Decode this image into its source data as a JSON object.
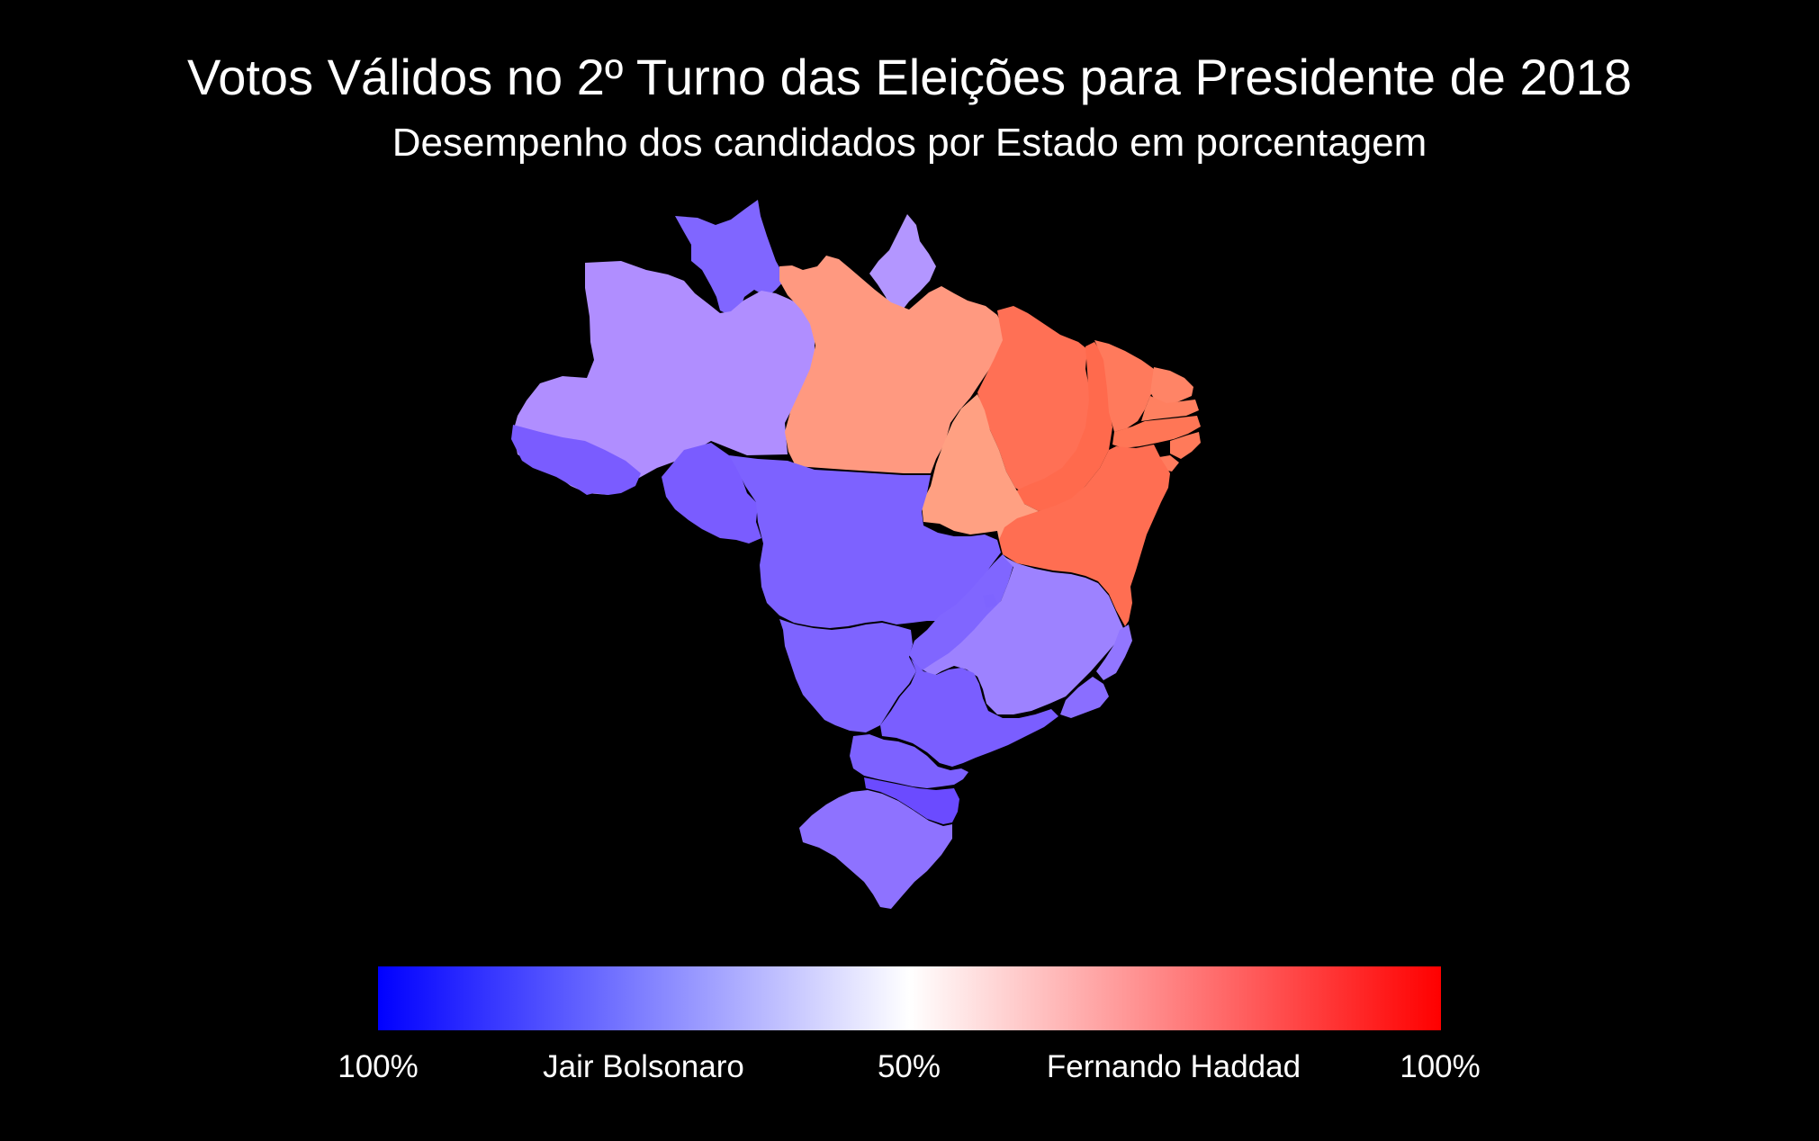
{
  "title": "Votos Válidos no 2º Turno das Eleições para Presidente de 2018",
  "subtitle": "Desempenho dos candidados por Estado em porcentagem",
  "legend": {
    "labels": [
      "100%",
      "Jair Bolsonaro",
      "50%",
      "Fernando Haddad",
      "100%"
    ],
    "colors": {
      "bolsonaro_end": "#0000ff",
      "midpoint": "#ffffff",
      "haddad_end": "#ff0000"
    }
  },
  "colors": {
    "background": "#000000",
    "text": "#ffffff"
  }
}
